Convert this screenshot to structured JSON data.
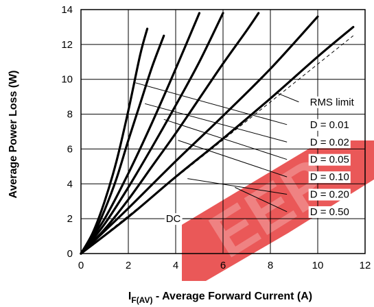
{
  "chart_data": {
    "type": "line",
    "title": "",
    "xlabel_main": "I",
    "xlabel_sub": "F(AV)",
    "xlabel_rest": " - Average Forward Current (A)",
    "ylabel": "Average Power Loss (W)",
    "xlim": [
      0,
      12
    ],
    "ylim": [
      0,
      14
    ],
    "x_ticks": [
      "0",
      "2",
      "4",
      "6",
      "8",
      "10",
      "12"
    ],
    "y_ticks": [
      "0",
      "2",
      "4",
      "6",
      "8",
      "10",
      "12",
      "14"
    ],
    "grid": true,
    "watermark": "EEP",
    "watermark_color": "#e63b3b",
    "series": [
      {
        "points": [
          [
            0,
            0
          ],
          [
            0.5,
            1.2
          ],
          [
            1,
            3
          ],
          [
            1.5,
            5.3
          ],
          [
            2,
            8.2
          ],
          [
            2.5,
            11.4
          ],
          [
            2.8,
            12.9
          ]
        ]
      },
      {
        "points": [
          [
            0,
            0
          ],
          [
            0.5,
            1.0
          ],
          [
            1,
            2.5
          ],
          [
            1.5,
            4.3
          ],
          [
            2,
            6.5
          ],
          [
            2.5,
            8.6
          ],
          [
            3,
            10.7
          ],
          [
            3.5,
            12.5
          ]
        ]
      },
      {
        "points": [
          [
            0,
            0
          ],
          [
            1,
            2.0
          ],
          [
            2,
            4.6
          ],
          [
            3,
            7.5
          ],
          [
            4,
            10.6
          ],
          [
            5,
            13.8
          ]
        ]
      },
      {
        "points": [
          [
            0,
            0
          ],
          [
            1,
            1.7
          ],
          [
            2,
            3.8
          ],
          [
            3,
            6.1
          ],
          [
            4,
            8.5
          ],
          [
            5,
            11
          ],
          [
            6,
            13.8
          ]
        ]
      },
      {
        "points": [
          [
            0,
            0
          ],
          [
            1,
            1.4
          ],
          [
            2,
            3.1
          ],
          [
            3,
            5.0
          ],
          [
            4,
            6.9
          ],
          [
            5,
            8.9
          ],
          [
            6,
            10.9
          ],
          [
            7,
            12.8
          ],
          [
            7.5,
            13.8
          ]
        ]
      },
      {
        "points": [
          [
            0,
            0
          ],
          [
            2,
            2.6
          ],
          [
            4,
            5.3
          ],
          [
            6,
            7.9
          ],
          [
            8,
            10.6
          ],
          [
            10,
            13.6
          ]
        ]
      },
      {
        "points": [
          [
            0,
            0
          ],
          [
            2,
            2.1
          ],
          [
            4,
            4.4
          ],
          [
            6,
            6.6
          ],
          [
            8,
            8.9
          ],
          [
            10,
            11.3
          ],
          [
            11.5,
            13
          ]
        ]
      }
    ],
    "rms_limit": [
      [
        0,
        0
      ],
      [
        11.5,
        12.5
      ]
    ],
    "annotations": [
      {
        "text": "RMS limit",
        "x": 10.6,
        "y": 8.7
      },
      {
        "text": "D = 0.01",
        "x": 10.5,
        "y": 7.4
      },
      {
        "text": "D = 0.02",
        "x": 10.5,
        "y": 6.4
      },
      {
        "text": "D = 0.05",
        "x": 10.5,
        "y": 5.4
      },
      {
        "text": "D = 0.10",
        "x": 10.5,
        "y": 4.4
      },
      {
        "text": "D = 0.20",
        "x": 10.5,
        "y": 3.4
      },
      {
        "text": "D = 0.50",
        "x": 10.5,
        "y": 2.4
      },
      {
        "text": "DC",
        "x": 3.9,
        "y": 2.0
      }
    ],
    "leaders": [
      {
        "from": [
          8.3,
          9.2
        ],
        "to": [
          9.2,
          8.7
        ]
      },
      {
        "from": [
          2.3,
          9.8
        ],
        "to": [
          8.7,
          7.4
        ]
      },
      {
        "from": [
          2.7,
          8.6
        ],
        "to": [
          8.7,
          6.4
        ]
      },
      {
        "from": [
          3.5,
          7.7
        ],
        "to": [
          8.7,
          5.4
        ]
      },
      {
        "from": [
          4.1,
          6.5
        ],
        "to": [
          8.7,
          4.4
        ]
      },
      {
        "from": [
          4.5,
          4.3
        ],
        "to": [
          8.7,
          3.4
        ]
      },
      {
        "from": [
          6.5,
          3.8
        ],
        "to": [
          8.7,
          2.4
        ]
      },
      {
        "from": [
          4.3,
          2.0
        ],
        "to": [
          5.1,
          2.0
        ]
      }
    ]
  }
}
